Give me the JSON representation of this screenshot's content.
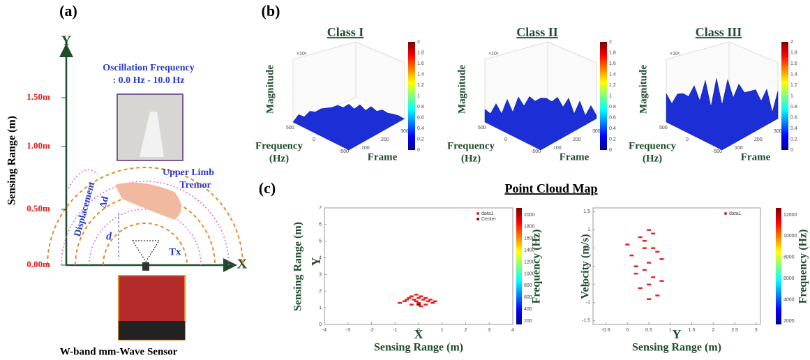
{
  "panel_a": {
    "label": "(a)",
    "y_axis": "Y",
    "x_axis": "X",
    "y_title": "Sensing Range (m)",
    "ticks": [
      "1.50m",
      "1.00m",
      "0.50m",
      "0.00m"
    ],
    "oscillation": {
      "title": "Oscillation Frequency",
      "range": ": 0.0 Hz - 10.0 Hz"
    },
    "displacement": "Displacement",
    "delta_d": "Δd",
    "d": "d",
    "tremor": [
      "Upper Limb",
      "Tremor"
    ],
    "tx": "Tx",
    "sensor": "W-band mm-Wave Sensor"
  },
  "panel_b": {
    "label": "(b)",
    "scale": "×10⁶",
    "colorbar_ticks": [
      0,
      0.2,
      0.4,
      0.6,
      0.8,
      1,
      1.2,
      1.4,
      1.6,
      1.8,
      2
    ],
    "freq_ticks": [
      500,
      0,
      -500
    ],
    "frame_ticks": [
      100,
      200,
      300
    ],
    "plots": [
      {
        "title": "Class I",
        "z_label": "Magnitude",
        "x_label": [
          "Frequency",
          "(Hz)"
        ],
        "y_label": "Frame"
      },
      {
        "title": "Class II",
        "z_label": "Magnitude",
        "x_label": [
          "Frequency",
          "(Hz)"
        ],
        "y_label": "Frame"
      },
      {
        "title": "Class III",
        "z_label": "Magnitude",
        "x_label": [
          "Frequency",
          "(Hz)"
        ],
        "y_label": "Frame"
      }
    ]
  },
  "panel_c": {
    "label": "(c)",
    "title": "Point Cloud Map",
    "chart_data": [
      {
        "type": "scatter",
        "y_title": "Sensing Range (m)",
        "y_axis": "Y",
        "x_axis": "X",
        "x_title": "Sensing Range (m)",
        "colorbar_title": "Frequency (Hz)",
        "xlim": [
          -4,
          4
        ],
        "xticks": [
          -4,
          -3,
          -2,
          -1,
          0,
          1,
          2,
          3,
          4
        ],
        "ylim": [
          0,
          7
        ],
        "yticks": [
          0,
          1,
          2,
          3,
          4,
          5,
          6,
          7
        ],
        "colorbar_ticks": [
          200,
          400,
          600,
          800,
          1000,
          1200,
          1400,
          1600,
          1800,
          2000
        ],
        "series": [
          {
            "name": "data1",
            "color": "#e8231f",
            "x": [
              -0.8,
              -0.6,
              -0.5,
              -0.4,
              -0.3,
              -0.2,
              -0.1,
              0,
              0.1,
              0.2,
              0.3,
              0.4,
              0.5,
              0.6,
              0.7,
              -0.3,
              0,
              0.3,
              -0.1,
              0.1
            ],
            "y": [
              1.3,
              1.4,
              1.5,
              1.6,
              1.7,
              1.5,
              1.8,
              1.6,
              1.7,
              1.5,
              1.6,
              1.4,
              1.5,
              1.3,
              1.4,
              1.2,
              1.3,
              1.2,
              1.4,
              1.1
            ]
          },
          {
            "name": "Center",
            "color": "#8b0000",
            "x": [
              0
            ],
            "y": [
              1.2
            ]
          }
        ]
      },
      {
        "type": "scatter",
        "y_title": "Velocity (m/s)",
        "x_axis": "Y",
        "x_title": "Sensing Range (m)",
        "colorbar_title": "Frequency (Hz)",
        "xlim": [
          -0.8,
          3.1
        ],
        "xticks": [
          -0.5,
          0,
          0.5,
          1,
          1.5,
          2,
          2.5,
          3
        ],
        "ylim": [
          -1.6,
          1.6
        ],
        "yticks": [
          -1.5,
          -1,
          -0.5,
          0,
          0.5,
          1,
          1.5
        ],
        "colorbar_ticks": [
          2000,
          4000,
          6000,
          8000,
          10000,
          12000
        ],
        "series": [
          {
            "name": "data1",
            "color": "#e8231f",
            "x": [
              0,
              0.1,
              0.2,
              0.3,
              0.4,
              0.5,
              0.5,
              0.6,
              0.6,
              0.7,
              0.7,
              0.8,
              0.3,
              0.4,
              0.5,
              0.6,
              0.2,
              0.8,
              0.5,
              0.4
            ],
            "y": [
              0.6,
              0.3,
              -0.2,
              0.8,
              0.5,
              0.1,
              -0.5,
              0.9,
              -0.3,
              0.4,
              -0.8,
              0.2,
              -0.6,
              -0.1,
              1.0,
              0.5,
              0.0,
              -0.4,
              -0.9,
              0.7
            ]
          }
        ]
      }
    ]
  }
}
